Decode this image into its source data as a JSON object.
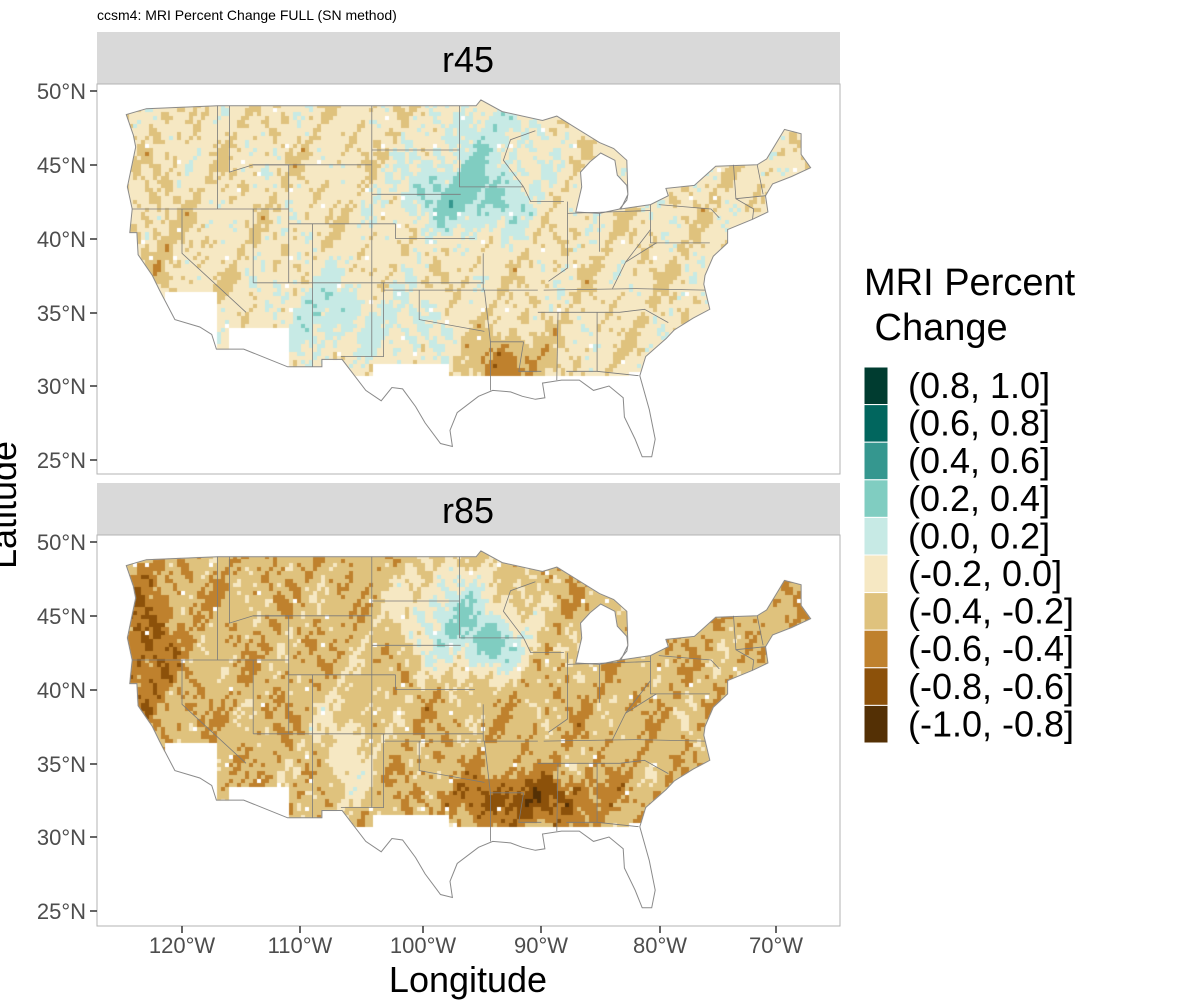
{
  "figure": {
    "title": "ccsm4: MRI Percent Change FULL (SN method)",
    "x_axis_label": "Longitude",
    "y_axis_label": "Latitude",
    "lon_ticks": [
      "120°W",
      "110°W",
      "100°W",
      "90°W",
      "80°W",
      "70°W"
    ],
    "lat_ticks": [
      "50°N",
      "45°N",
      "40°N",
      "35°N",
      "30°N",
      "25°N"
    ],
    "panels": [
      {
        "strip_label": "r45"
      },
      {
        "strip_label": "r85"
      }
    ],
    "legend": {
      "title_line1": "MRI Percent",
      "title_line2": " Change",
      "items": [
        {
          "label": "(0.8, 1.0]",
          "color": "#003c30"
        },
        {
          "label": "(0.6, 0.8]",
          "color": "#01665e"
        },
        {
          "label": "(0.4, 0.6]",
          "color": "#35978f"
        },
        {
          "label": "(0.2, 0.4]",
          "color": "#80cdc1"
        },
        {
          "label": "(0.0, 0.2]",
          "color": "#c7eae5"
        },
        {
          "label": "(-0.2, 0.0]",
          "color": "#f6e8c3"
        },
        {
          "label": "(-0.4, -0.2]",
          "color": "#dfc27d"
        },
        {
          "label": "(-0.6, -0.4]",
          "color": "#bf812d"
        },
        {
          "label": "(-0.8, -0.6]",
          "color": "#8c510a"
        },
        {
          "label": "(-1.0, -0.8]",
          "color": "#543005"
        }
      ]
    }
  }
}
